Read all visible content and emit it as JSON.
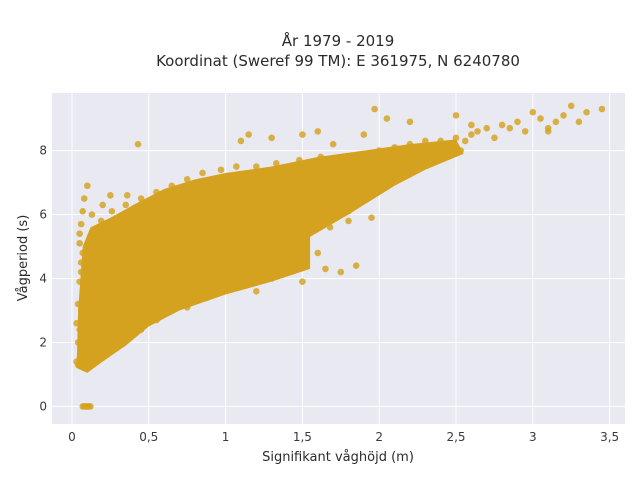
{
  "chart_data": {
    "type": "scatter",
    "title": "År 1979 - 2019",
    "subtitle": "Koordinat (Sweref 99 TM): E 361975, N 6240780",
    "xlabel": "Signifikant våghöjd (m)",
    "ylabel": "Vågperiod (s)",
    "xlim": [
      -0.13,
      3.6
    ],
    "ylim": [
      -0.55,
      9.8
    ],
    "x_ticks": [
      0,
      0.5,
      1,
      1.5,
      2,
      2.5,
      3,
      3.5
    ],
    "x_tick_labels": [
      "0",
      "0,5",
      "1",
      "1,5",
      "2",
      "2,5",
      "3",
      "3,5"
    ],
    "y_ticks": [
      0,
      2,
      4,
      6,
      8
    ],
    "y_tick_labels": [
      "0",
      "2",
      "4",
      "6",
      "8"
    ],
    "grid": true,
    "background_color": "#e9e9f1",
    "marker_color": "#d4a21f",
    "series": [
      {
        "points": [
          [
            0.04,
            1.3
          ],
          [
            0.05,
            1.5
          ],
          [
            0.06,
            1.8
          ],
          [
            0.05,
            2.4
          ],
          [
            0.06,
            3.0
          ],
          [
            0.07,
            3.6
          ],
          [
            0.06,
            4.2
          ],
          [
            0.07,
            4.8
          ],
          [
            0.05,
            5.4
          ],
          [
            0.07,
            6.1
          ],
          [
            0.08,
            6.5
          ],
          [
            0.1,
            6.9
          ],
          [
            0.09,
            1.2
          ],
          [
            0.1,
            1.6
          ],
          [
            0.12,
            2.0
          ],
          [
            0.11,
            2.8
          ],
          [
            0.12,
            3.5
          ],
          [
            0.13,
            4.4
          ],
          [
            0.12,
            5.2
          ],
          [
            0.13,
            6.0
          ],
          [
            0.15,
            1.4
          ],
          [
            0.16,
            2.2
          ],
          [
            0.17,
            3.1
          ],
          [
            0.18,
            4.0
          ],
          [
            0.17,
            5.0
          ],
          [
            0.19,
            5.8
          ],
          [
            0.2,
            6.3
          ],
          [
            0.2,
            1.6
          ],
          [
            0.22,
            2.6
          ],
          [
            0.23,
            3.6
          ],
          [
            0.24,
            4.6
          ],
          [
            0.25,
            5.5
          ],
          [
            0.26,
            6.1
          ],
          [
            0.25,
            6.6
          ],
          [
            0.28,
            1.8
          ],
          [
            0.3,
            2.7
          ],
          [
            0.31,
            3.7
          ],
          [
            0.32,
            4.8
          ],
          [
            0.33,
            5.6
          ],
          [
            0.35,
            6.3
          ],
          [
            0.36,
            6.6
          ],
          [
            0.35,
            2.1
          ],
          [
            0.38,
            3.0
          ],
          [
            0.4,
            4.0
          ],
          [
            0.42,
            5.0
          ],
          [
            0.43,
            5.9
          ],
          [
            0.45,
            6.5
          ],
          [
            0.45,
            2.4
          ],
          [
            0.47,
            3.3
          ],
          [
            0.5,
            4.3
          ],
          [
            0.52,
            5.3
          ],
          [
            0.53,
            6.1
          ],
          [
            0.55,
            6.7
          ],
          [
            0.55,
            2.7
          ],
          [
            0.58,
            3.6
          ],
          [
            0.6,
            4.6
          ],
          [
            0.62,
            5.5
          ],
          [
            0.63,
            6.3
          ],
          [
            0.65,
            6.9
          ],
          [
            0.65,
            3.0
          ],
          [
            0.68,
            3.9
          ],
          [
            0.7,
            4.9
          ],
          [
            0.72,
            5.8
          ],
          [
            0.74,
            6.5
          ],
          [
            0.75,
            7.1
          ],
          [
            0.75,
            3.1
          ],
          [
            0.78,
            4.2
          ],
          [
            0.8,
            5.1
          ],
          [
            0.82,
            6.0
          ],
          [
            0.84,
            6.7
          ],
          [
            0.85,
            7.3
          ],
          [
            0.88,
            3.4
          ],
          [
            0.9,
            4.4
          ],
          [
            0.92,
            5.3
          ],
          [
            0.94,
            6.2
          ],
          [
            0.95,
            6.9
          ],
          [
            0.97,
            7.4
          ],
          [
            0.98,
            3.6
          ],
          [
            1.0,
            4.6
          ],
          [
            1.02,
            5.5
          ],
          [
            1.04,
            6.3
          ],
          [
            1.05,
            7.0
          ],
          [
            1.07,
            7.5
          ],
          [
            1.1,
            3.8
          ],
          [
            1.12,
            4.8
          ],
          [
            1.14,
            5.7
          ],
          [
            1.16,
            6.4
          ],
          [
            1.18,
            7.1
          ],
          [
            1.2,
            7.5
          ],
          [
            1.22,
            4.0
          ],
          [
            1.25,
            5.0
          ],
          [
            1.27,
            5.9
          ],
          [
            1.29,
            6.5
          ],
          [
            1.3,
            7.1
          ],
          [
            1.33,
            7.6
          ],
          [
            1.35,
            4.2
          ],
          [
            1.38,
            5.2
          ],
          [
            1.4,
            6.0
          ],
          [
            1.42,
            6.6
          ],
          [
            1.45,
            7.2
          ],
          [
            1.48,
            7.7
          ],
          [
            1.5,
            4.4
          ],
          [
            1.52,
            5.4
          ],
          [
            1.55,
            6.2
          ],
          [
            1.58,
            6.8
          ],
          [
            1.6,
            7.3
          ],
          [
            1.62,
            7.8
          ],
          [
            1.65,
            4.3
          ],
          [
            1.68,
            5.6
          ],
          [
            1.7,
            6.4
          ],
          [
            1.73,
            6.9
          ],
          [
            1.75,
            7.4
          ],
          [
            1.78,
            7.8
          ],
          [
            1.8,
            5.8
          ],
          [
            1.83,
            6.6
          ],
          [
            1.85,
            7.1
          ],
          [
            1.88,
            7.5
          ],
          [
            1.9,
            7.9
          ],
          [
            1.93,
            6.8
          ],
          [
            1.95,
            7.3
          ],
          [
            1.98,
            7.6
          ],
          [
            2.0,
            8.0
          ],
          [
            2.03,
            7.1
          ],
          [
            2.05,
            7.5
          ],
          [
            2.08,
            7.8
          ],
          [
            2.1,
            8.1
          ],
          [
            2.13,
            7.4
          ],
          [
            2.15,
            7.7
          ],
          [
            2.18,
            8.0
          ],
          [
            2.2,
            8.2
          ],
          [
            2.23,
            7.6
          ],
          [
            2.25,
            7.9
          ],
          [
            2.28,
            8.1
          ],
          [
            2.3,
            8.3
          ],
          [
            2.33,
            7.8
          ],
          [
            2.36,
            8.1
          ],
          [
            2.4,
            8.3
          ],
          [
            2.43,
            8.0
          ],
          [
            2.46,
            8.2
          ],
          [
            2.5,
            8.4
          ],
          [
            2.53,
            8.0
          ],
          [
            2.56,
            8.3
          ],
          [
            2.6,
            8.5
          ],
          [
            2.64,
            8.6
          ],
          [
            2.7,
            8.7
          ],
          [
            2.75,
            8.4
          ],
          [
            2.8,
            8.8
          ],
          [
            2.85,
            8.7
          ],
          [
            2.9,
            8.9
          ],
          [
            2.95,
            8.6
          ],
          [
            3.0,
            9.2
          ],
          [
            3.05,
            9.0
          ],
          [
            3.1,
            8.7
          ],
          [
            3.15,
            8.9
          ],
          [
            3.2,
            9.1
          ],
          [
            3.3,
            8.9
          ],
          [
            3.35,
            9.2
          ],
          [
            3.45,
            9.3
          ],
          [
            0.43,
            8.2
          ],
          [
            1.1,
            8.3
          ],
          [
            1.15,
            8.5
          ],
          [
            1.3,
            8.4
          ],
          [
            1.5,
            8.5
          ],
          [
            1.6,
            8.6
          ],
          [
            1.7,
            8.2
          ],
          [
            1.9,
            8.5
          ],
          [
            1.97,
            9.3
          ],
          [
            2.05,
            9.0
          ],
          [
            2.2,
            8.9
          ],
          [
            2.5,
            9.1
          ],
          [
            2.6,
            8.8
          ],
          [
            3.1,
            8.6
          ],
          [
            3.25,
            9.4
          ],
          [
            1.95,
            5.9
          ],
          [
            1.8,
            6.1
          ],
          [
            1.85,
            4.4
          ],
          [
            1.75,
            4.2
          ],
          [
            1.6,
            4.8
          ],
          [
            1.5,
            3.9
          ],
          [
            1.4,
            4.3
          ],
          [
            1.3,
            4.0
          ],
          [
            1.2,
            3.6
          ],
          [
            0.07,
            0.0
          ],
          [
            0.08,
            0.0
          ],
          [
            0.09,
            0.0
          ],
          [
            0.1,
            0.0
          ],
          [
            0.11,
            0.0
          ],
          [
            0.12,
            0.0
          ],
          [
            0.03,
            1.4
          ],
          [
            0.04,
            2.0
          ],
          [
            0.03,
            2.6
          ],
          [
            0.04,
            3.2
          ],
          [
            0.05,
            3.9
          ],
          [
            0.06,
            4.5
          ],
          [
            0.05,
            5.1
          ],
          [
            0.06,
            5.7
          ]
        ]
      }
    ]
  }
}
